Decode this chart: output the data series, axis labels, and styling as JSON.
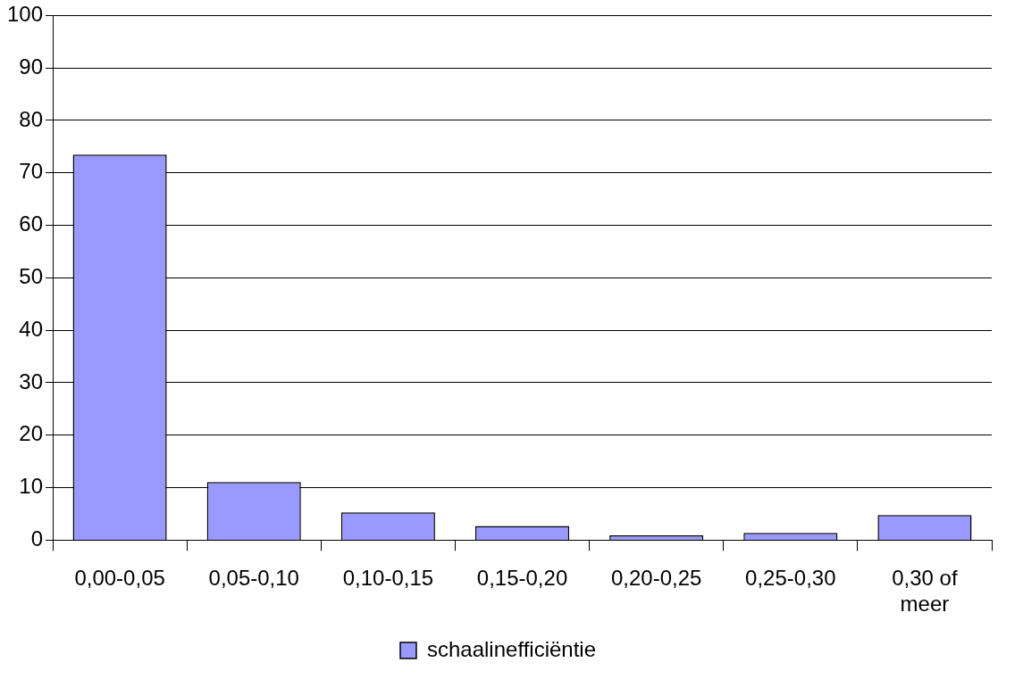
{
  "chart_data": {
    "type": "bar",
    "categories": [
      "0,00-0,05",
      "0,05-0,10",
      "0,10-0,15",
      "0,15-0,20",
      "0,20-0,25",
      "0,25-0,30",
      "0,30 of meer"
    ],
    "series": [
      {
        "name": "schaalinefficiëntie",
        "color": "#9999ff",
        "values": [
          73.5,
          11.1,
          5.3,
          2.7,
          0.9,
          1.4,
          4.8
        ]
      }
    ],
    "ylim": [
      0,
      100
    ],
    "yticks": [
      0,
      10,
      20,
      30,
      40,
      50,
      60,
      70,
      80,
      90,
      100
    ],
    "grid": "y",
    "legend": "bottom"
  }
}
